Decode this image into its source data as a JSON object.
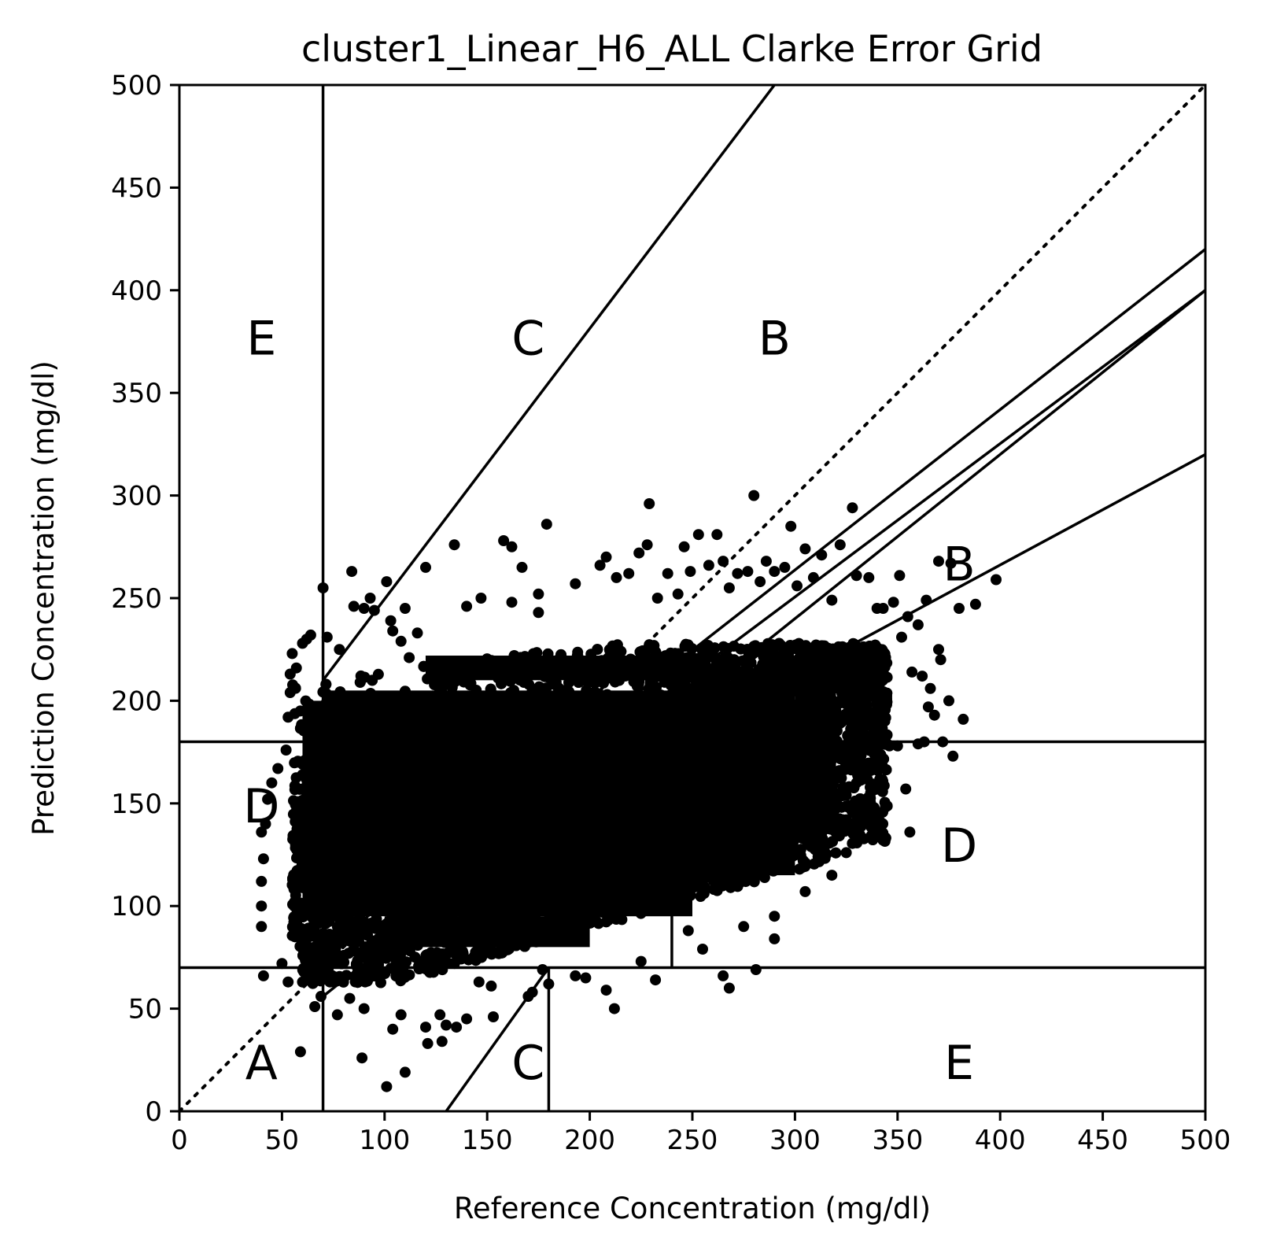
{
  "chart_data": {
    "type": "scatter",
    "title": "cluster1_Linear_H6_ALL Clarke Error Grid",
    "xlabel": "Reference Concentration (mg/dl)",
    "ylabel": "Prediction Concentration (mg/dl)",
    "xlim": [
      0,
      500
    ],
    "ylim": [
      0,
      500
    ],
    "xticks": [
      0,
      50,
      100,
      150,
      200,
      250,
      300,
      350,
      400,
      450,
      500
    ],
    "yticks": [
      0,
      50,
      100,
      150,
      200,
      250,
      300,
      350,
      400,
      450,
      500
    ],
    "grid": false,
    "marker_color": "#000000",
    "reference_line": {
      "style": "dotted",
      "from": [
        0,
        0
      ],
      "to": [
        500,
        500
      ]
    },
    "zone_lines": [
      {
        "from": [
          70,
          0
        ],
        "to": [
          70,
          500
        ]
      },
      {
        "from": [
          0,
          180
        ],
        "to": [
          500,
          180
        ]
      },
      {
        "from": [
          0,
          70
        ],
        "to": [
          500,
          70
        ]
      },
      {
        "from": [
          180,
          0
        ],
        "to": [
          180,
          70
        ]
      },
      {
        "from": [
          240,
          70
        ],
        "to": [
          240,
          180
        ]
      },
      {
        "from": [
          70,
          56
        ],
        "to": [
          500,
          400
        ]
      },
      {
        "from": [
          58.33,
          70
        ],
        "to": [
          500,
          400
        ]
      },
      {
        "from": [
          70,
          210
        ],
        "to": [
          290,
          500
        ]
      },
      {
        "from": [
          70,
          84
        ],
        "to": [
          500,
          420
        ]
      },
      {
        "from": [
          130,
          0
        ],
        "to": [
          180,
          70
        ]
      },
      {
        "from": [
          240,
          180
        ],
        "to": [
          500,
          320
        ]
      }
    ],
    "zone_labels": [
      {
        "text": "A",
        "x": 40,
        "y": 22
      },
      {
        "text": "B",
        "x": 290,
        "y": 375
      },
      {
        "text": "B",
        "x": 380,
        "y": 265
      },
      {
        "text": "C",
        "x": 170,
        "y": 375
      },
      {
        "text": "C",
        "x": 170,
        "y": 22
      },
      {
        "text": "D",
        "x": 40,
        "y": 147
      },
      {
        "text": "D",
        "x": 380,
        "y": 128
      },
      {
        "text": "E",
        "x": 40,
        "y": 375
      },
      {
        "text": "E",
        "x": 380,
        "y": 22
      }
    ],
    "points": [
      [
        70,
        255
      ],
      [
        84,
        263
      ],
      [
        101,
        258
      ],
      [
        103,
        239
      ],
      [
        110,
        245
      ],
      [
        108,
        229
      ],
      [
        120,
        265
      ],
      [
        134,
        276
      ],
      [
        147,
        250
      ],
      [
        140,
        246
      ],
      [
        158,
        278
      ],
      [
        162,
        275
      ],
      [
        162,
        248
      ],
      [
        167,
        265
      ],
      [
        175,
        252
      ],
      [
        179,
        286
      ],
      [
        175,
        243
      ],
      [
        193,
        257
      ],
      [
        205,
        266
      ],
      [
        208,
        270
      ],
      [
        213,
        260
      ],
      [
        219,
        262
      ],
      [
        224,
        272
      ],
      [
        228,
        276
      ],
      [
        229,
        296
      ],
      [
        233,
        250
      ],
      [
        238,
        262
      ],
      [
        243,
        252
      ],
      [
        246,
        275
      ],
      [
        249,
        263
      ],
      [
        253,
        281
      ],
      [
        258,
        266
      ],
      [
        262,
        281
      ],
      [
        265,
        268
      ],
      [
        268,
        255
      ],
      [
        272,
        262
      ],
      [
        277,
        263
      ],
      [
        280,
        300
      ],
      [
        283,
        258
      ],
      [
        286,
        268
      ],
      [
        290,
        263
      ],
      [
        295,
        265
      ],
      [
        298,
        285
      ],
      [
        301,
        256
      ],
      [
        305,
        274
      ],
      [
        309,
        260
      ],
      [
        313,
        271
      ],
      [
        318,
        249
      ],
      [
        322,
        276
      ],
      [
        328,
        294
      ],
      [
        330,
        261
      ],
      [
        336,
        260
      ],
      [
        340,
        245
      ],
      [
        343,
        245
      ],
      [
        348,
        248
      ],
      [
        351,
        261
      ],
      [
        355,
        241
      ],
      [
        360,
        237
      ],
      [
        364,
        249
      ],
      [
        370,
        268
      ],
      [
        376,
        267
      ],
      [
        380,
        245
      ],
      [
        388,
        247
      ],
      [
        398,
        259
      ],
      [
        352,
        231
      ],
      [
        357,
        214
      ],
      [
        362,
        212
      ],
      [
        366,
        206
      ],
      [
        370,
        225
      ],
      [
        371,
        220
      ],
      [
        365,
        197
      ],
      [
        368,
        193
      ],
      [
        372,
        180
      ],
      [
        375,
        200
      ],
      [
        377,
        173
      ],
      [
        382,
        191
      ],
      [
        356,
        136
      ],
      [
        354,
        157
      ],
      [
        346,
        178
      ],
      [
        350,
        178
      ],
      [
        360,
        179
      ],
      [
        363,
        180
      ],
      [
        330,
        160
      ],
      [
        332,
        140
      ],
      [
        325,
        126
      ],
      [
        318,
        115
      ],
      [
        305,
        107
      ],
      [
        290,
        95
      ],
      [
        290,
        84
      ],
      [
        281,
        69
      ],
      [
        275,
        90
      ],
      [
        268,
        60
      ],
      [
        265,
        66
      ],
      [
        255,
        79
      ],
      [
        248,
        88
      ],
      [
        232,
        64
      ],
      [
        225,
        73
      ],
      [
        212,
        50
      ],
      [
        208,
        59
      ],
      [
        198,
        65
      ],
      [
        193,
        66
      ],
      [
        180,
        62
      ],
      [
        177,
        69
      ],
      [
        172,
        58
      ],
      [
        170,
        56
      ],
      [
        153,
        46
      ],
      [
        152,
        61
      ],
      [
        146,
        63
      ],
      [
        140,
        45
      ],
      [
        135,
        41
      ],
      [
        130,
        42
      ],
      [
        128,
        34
      ],
      [
        127,
        47
      ],
      [
        121,
        33
      ],
      [
        120,
        41
      ],
      [
        110,
        19
      ],
      [
        108,
        47
      ],
      [
        104,
        40
      ],
      [
        101,
        12
      ],
      [
        89,
        26
      ],
      [
        90,
        50
      ],
      [
        83,
        55
      ],
      [
        77,
        47
      ],
      [
        69,
        56
      ],
      [
        66,
        51
      ],
      [
        60,
        63
      ],
      [
        59,
        29
      ],
      [
        53,
        63
      ],
      [
        50,
        72
      ],
      [
        41,
        66
      ],
      [
        40,
        100
      ],
      [
        40,
        90
      ],
      [
        40,
        112
      ],
      [
        41,
        123
      ],
      [
        40,
        136
      ],
      [
        42,
        140
      ],
      [
        43,
        152
      ],
      [
        45,
        160
      ],
      [
        48,
        167
      ],
      [
        52,
        176
      ],
      [
        53,
        192
      ],
      [
        54,
        204
      ],
      [
        54,
        213
      ],
      [
        55,
        223
      ],
      [
        57,
        216
      ],
      [
        60,
        228
      ],
      [
        62,
        230
      ],
      [
        64,
        232
      ],
      [
        72,
        231
      ],
      [
        78,
        225
      ],
      [
        85,
        246
      ],
      [
        90,
        245
      ],
      [
        95,
        244
      ],
      [
        93,
        250
      ],
      [
        112,
        221
      ],
      [
        104,
        234
      ],
      [
        116,
        233
      ]
    ]
  }
}
